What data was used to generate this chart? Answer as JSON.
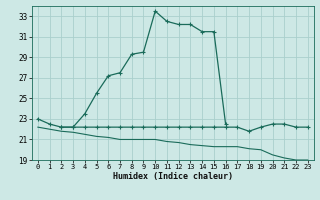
{
  "xlabel": "Humidex (Indice chaleur)",
  "bg_color": "#cde8e5",
  "grid_color": "#aacfcc",
  "line_color": "#1a6b5a",
  "xlim": [
    -0.5,
    23.5
  ],
  "ylim": [
    19,
    34
  ],
  "yticks": [
    19,
    21,
    23,
    25,
    27,
    29,
    31,
    33
  ],
  "xticks": [
    0,
    1,
    2,
    3,
    4,
    5,
    6,
    7,
    8,
    9,
    10,
    11,
    12,
    13,
    14,
    15,
    16,
    17,
    18,
    19,
    20,
    21,
    22,
    23
  ],
  "curve1_x": [
    0,
    1,
    2,
    3,
    4,
    5,
    6,
    7,
    8,
    9,
    10,
    11,
    12,
    13,
    14,
    15,
    16
  ],
  "curve1_y": [
    23.0,
    22.5,
    22.2,
    22.2,
    23.5,
    25.5,
    27.2,
    27.5,
    29.3,
    29.5,
    33.5,
    32.5,
    32.2,
    32.2,
    31.5,
    31.5,
    22.5
  ],
  "curve2_x": [
    2,
    3,
    4,
    5,
    6,
    7,
    8,
    9,
    10,
    11,
    12,
    13,
    14,
    15,
    16,
    17,
    18,
    19,
    20,
    21,
    22,
    23
  ],
  "curve2_y": [
    22.2,
    22.2,
    22.2,
    22.2,
    22.2,
    22.2,
    22.2,
    22.2,
    22.2,
    22.2,
    22.2,
    22.2,
    22.2,
    22.2,
    22.2,
    22.2,
    21.8,
    22.2,
    22.5,
    22.5,
    22.2,
    22.2
  ],
  "curve3_x": [
    0,
    1,
    2,
    3,
    4,
    5,
    6,
    7,
    8,
    9,
    10,
    11,
    12,
    13,
    14,
    15,
    16,
    17,
    18,
    19,
    20,
    21,
    22,
    23
  ],
  "curve3_y": [
    22.2,
    22.0,
    21.8,
    21.7,
    21.5,
    21.3,
    21.2,
    21.0,
    21.0,
    21.0,
    21.0,
    20.8,
    20.7,
    20.5,
    20.4,
    20.3,
    20.3,
    20.3,
    20.1,
    20.0,
    19.5,
    19.2,
    19.0,
    19.0
  ]
}
